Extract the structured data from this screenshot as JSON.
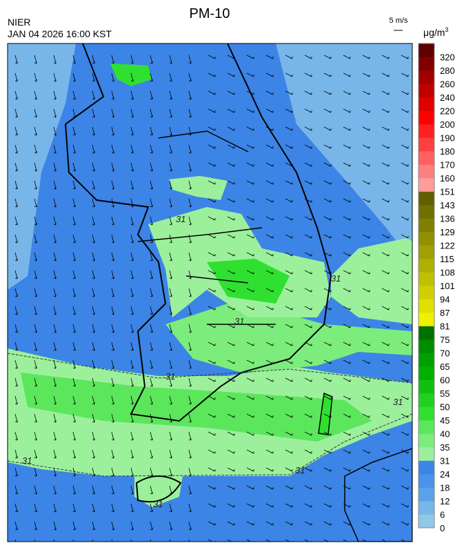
{
  "title": "PM-10",
  "agency": "NIER",
  "timestamp": "JAN 04 2026 16:00 KST",
  "wind_scale": "5 m/s",
  "unit": {
    "base": "μg/m",
    "sup": "3"
  },
  "contour_labels": [
    "31",
    "31",
    "31",
    "31",
    "31",
    "31",
    "31",
    "31"
  ],
  "colorbar": {
    "ticks": [
      0,
      6,
      12,
      18,
      24,
      31,
      35,
      40,
      45,
      50,
      55,
      60,
      65,
      70,
      75,
      81,
      87,
      94,
      101,
      108,
      115,
      122,
      129,
      136,
      143,
      151,
      160,
      170,
      180,
      190,
      200,
      220,
      240,
      260,
      280,
      320
    ],
    "colors": [
      "#92c8e6",
      "#78b6ea",
      "#5aa2ea",
      "#4a92ea",
      "#3c84e6",
      "#9cf09c",
      "#7cec7c",
      "#5ce65c",
      "#30e030",
      "#1ed21e",
      "#10c010",
      "#00b000",
      "#00a000",
      "#008c00",
      "#007000",
      "#f0f000",
      "#e0e000",
      "#d0d000",
      "#c0c000",
      "#b0b000",
      "#a0a000",
      "#909000",
      "#808000",
      "#707000",
      "#606000",
      "#ff9c9c",
      "#ff8080",
      "#ff6060",
      "#ff4040",
      "#ff2020",
      "#ff0000",
      "#e00000",
      "#c00000",
      "#a00000",
      "#800000",
      "#600000"
    ]
  }
}
